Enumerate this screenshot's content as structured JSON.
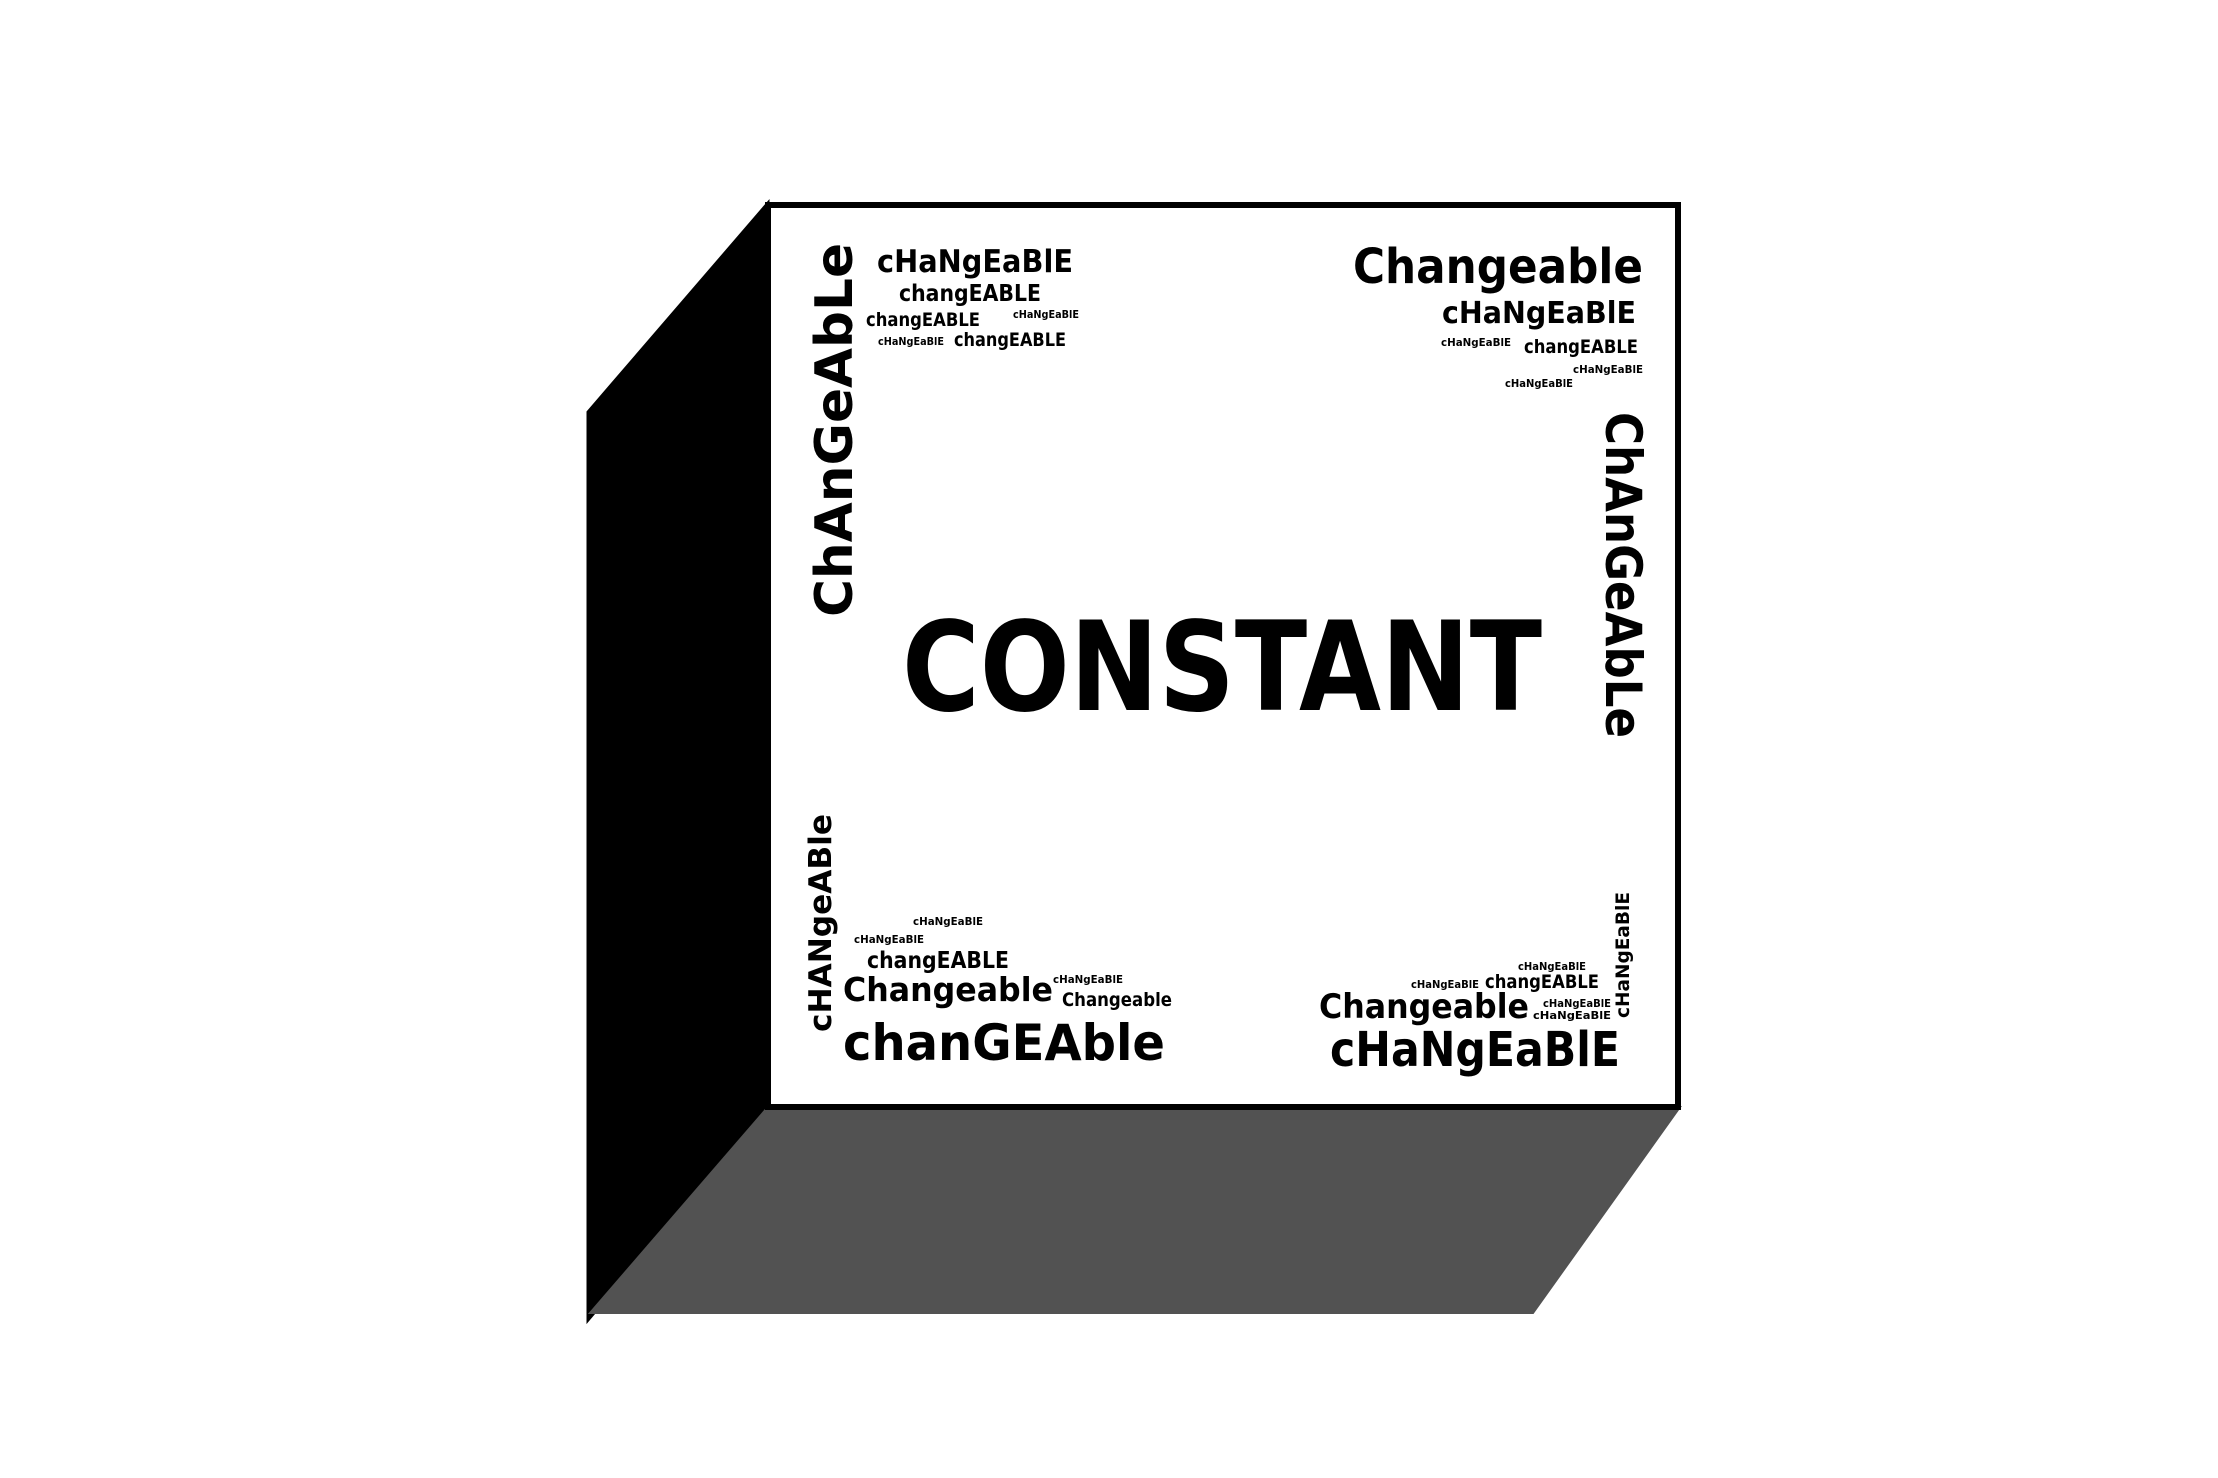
{
  "diagram": {
    "center_label": "CONSTANT",
    "colors": {
      "face": "#ffffff",
      "edge": "#000000",
      "left_side": "#000000",
      "bottom_side": "#525252",
      "text": "#000000"
    },
    "corner_top_left": {
      "vertical_word": "ChAnGeAbLe",
      "words": [
        "cHaNgEaBlE",
        "changEABLE",
        "changEABLE",
        "cHaNgEaBlE",
        "cHaNgEaBlE",
        "changEABLE"
      ]
    },
    "corner_top_right": {
      "words": [
        "Changeable",
        "cHaNgEaBlE",
        "cHaNgEaBlE",
        "changEABLE",
        "cHaNgEaBlE",
        "cHaNgEaBlE"
      ],
      "vertical_word": "ChAnGeAbLe"
    },
    "corner_bottom_left": {
      "vertical_word": "cHANgeABle",
      "words": [
        "cHaNgEaBlE",
        "cHaNgEaBlE",
        "changEABLE",
        "Changeable",
        "cHaNgEaBlE",
        "Changeable",
        "chanGEAble"
      ]
    },
    "corner_bottom_right": {
      "vertical_word": "cHaNgEaBlE",
      "words": [
        "cHaNgEaBlE",
        "cHaNgEaBlE",
        "changEABLE",
        "Changeable",
        "cHaNgEaBlE",
        "cHaNgEaBlE",
        "cHaNgEaBlE"
      ]
    }
  }
}
